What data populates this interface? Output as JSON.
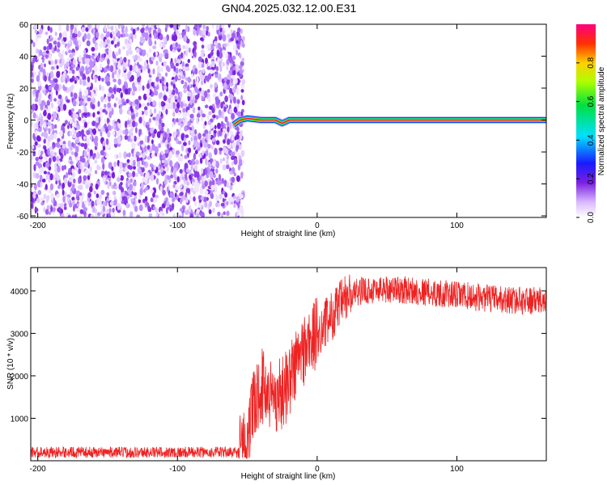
{
  "title": "GN04.2025.032.12.00.E31",
  "colors": {
    "snr_line": "#ee2222",
    "noise": "#7a20e0",
    "ridge_core": "#ff1a3c",
    "ridge_edge": "#1a1aff"
  },
  "chart_data": [
    {
      "type": "heatmap",
      "xlabel": "Height of straight line (km)",
      "ylabel": "Frequency (Hz)",
      "xlim": [
        -205,
        164
      ],
      "ylim": [
        -61,
        60
      ],
      "x_ticks": [
        -200,
        -100,
        0,
        100
      ],
      "y_ticks": [
        -60,
        -40,
        -20,
        0,
        20,
        40,
        60
      ],
      "noise_region_x": [
        -205,
        -55
      ],
      "ridge": {
        "description_value_hz": 0,
        "x_start": -62,
        "x_end": 164,
        "points": [
          {
            "x": -60,
            "y": -3
          },
          {
            "x": -55,
            "y": 0
          },
          {
            "x": -50,
            "y": 1
          },
          {
            "x": -40,
            "y": 0
          },
          {
            "x": -30,
            "y": 0
          },
          {
            "x": -25,
            "y": -2
          },
          {
            "x": -20,
            "y": 0
          },
          {
            "x": 0,
            "y": 0
          },
          {
            "x": 164,
            "y": 0
          }
        ]
      },
      "colorbar": {
        "label": "Normalized spectral amplitude",
        "range": [
          0,
          1
        ],
        "ticks": [
          "0.0",
          "0.2",
          "0.4",
          "0.6",
          "0.8"
        ]
      }
    },
    {
      "type": "line",
      "xlabel": "Height of straight line (km)",
      "ylabel": "SNR (10 * v/v)",
      "xlim": [
        -205,
        164
      ],
      "ylim": [
        0,
        4550
      ],
      "x_ticks": [
        -200,
        -100,
        0,
        100
      ],
      "y_ticks": [
        1000,
        2000,
        3000,
        4000
      ],
      "series": [
        {
          "envelope": [
            {
              "x": -205,
              "y": 200
            },
            {
              "x": -56,
              "y": 200
            },
            {
              "x": -50,
              "y": 500
            },
            {
              "x": -45,
              "y": 1300
            },
            {
              "x": -40,
              "y": 1800
            },
            {
              "x": -35,
              "y": 1600
            },
            {
              "x": -30,
              "y": 1500
            },
            {
              "x": -25,
              "y": 1600
            },
            {
              "x": -20,
              "y": 1900
            },
            {
              "x": -15,
              "y": 2300
            },
            {
              "x": -10,
              "y": 2600
            },
            {
              "x": 0,
              "y": 3000
            },
            {
              "x": 10,
              "y": 3400
            },
            {
              "x": 20,
              "y": 3800
            },
            {
              "x": 30,
              "y": 4000
            },
            {
              "x": 50,
              "y": 4050
            },
            {
              "x": 70,
              "y": 4000
            },
            {
              "x": 100,
              "y": 3900
            },
            {
              "x": 130,
              "y": 3800
            },
            {
              "x": 164,
              "y": 3750
            }
          ]
        }
      ]
    }
  ]
}
